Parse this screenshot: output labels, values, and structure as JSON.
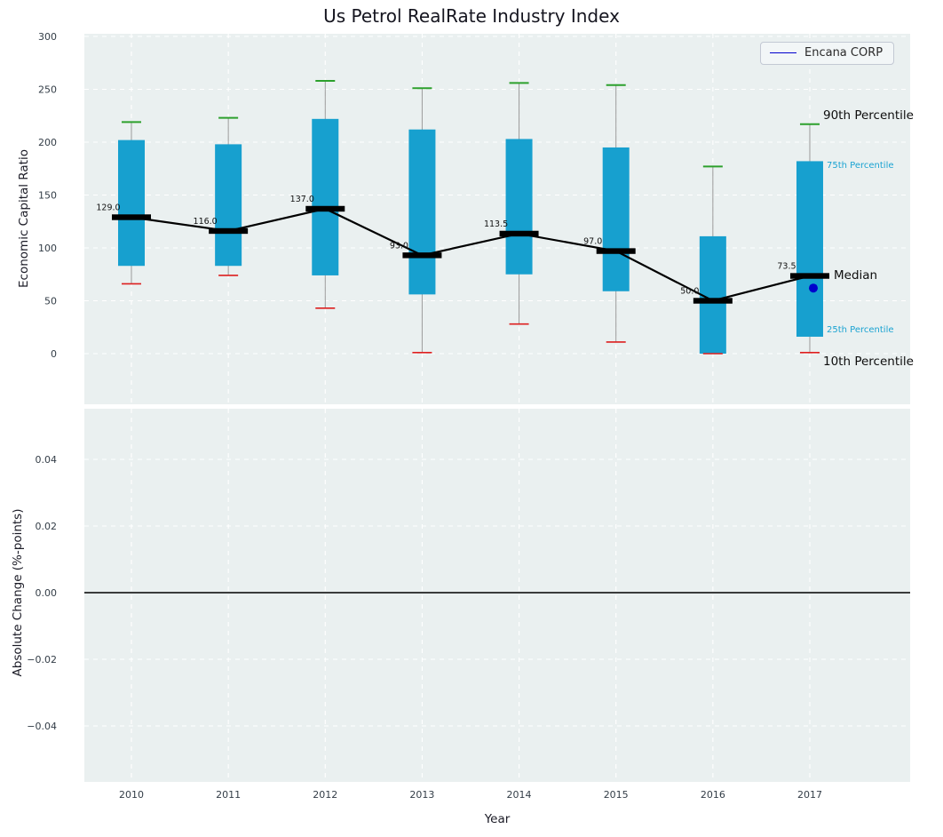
{
  "title": "Us Petrol RealRate Industry Index",
  "legend": {
    "label": "Encana CORP"
  },
  "axes": {
    "xlabel": "Year",
    "top": {
      "ylabel": "Economic Capital Ratio",
      "ytick_values": [
        0,
        50,
        100,
        150,
        200,
        250,
        300
      ],
      "yticklabels": [
        "0",
        "50",
        "100",
        "150",
        "200",
        "250",
        "300"
      ]
    },
    "bottom": {
      "ylabel": "Absolute Change (%-points)",
      "ytick_values": [
        -0.04,
        -0.02,
        0,
        0.02,
        0.04
      ],
      "yticklabels": [
        "−0.04",
        "−0.02",
        "0.00",
        "0.02",
        "0.04"
      ]
    }
  },
  "annotations": {
    "p90": "90th Percentile",
    "p75": "75th Percentile",
    "median": "Median",
    "p25": "25th Percentile",
    "p10": "10th Percentile"
  },
  "colors": {
    "axes_bg": "#eaf0f0",
    "grid": "#ffffff",
    "bar": "#17a0cf",
    "p90_cap": "#2ca02c",
    "p10_cap": "#dd1e1e",
    "whisker": "#9a9a9a",
    "median": "#000000",
    "company": "#0000cd",
    "tick": "#333d47"
  },
  "chart_data": {
    "type": "boxplot-percentile-series",
    "title": "Us Petrol RealRate Industry Index",
    "xlabel": "Year",
    "ylabel_top": "Economic Capital Ratio",
    "ylabel_bottom": "Absolute Change (%-points)",
    "categories": [
      2010,
      2011,
      2012,
      2013,
      2014,
      2015,
      2016,
      2017
    ],
    "series": [
      {
        "name": "p90",
        "values": [
          219,
          223,
          258,
          251,
          256,
          254,
          177,
          217
        ]
      },
      {
        "name": "p75",
        "values": [
          202,
          198,
          222,
          212,
          203,
          195,
          111,
          182
        ]
      },
      {
        "name": "median",
        "values": [
          129,
          116,
          137,
          93,
          113.5,
          97,
          50,
          73.5
        ]
      },
      {
        "name": "p25",
        "values": [
          83,
          83,
          74,
          56,
          75,
          59,
          0,
          16
        ]
      },
      {
        "name": "p10",
        "values": [
          66,
          74,
          43,
          1,
          28,
          11,
          0,
          1
        ]
      }
    ],
    "median_labels": [
      "129.0",
      "116.0",
      "137.0",
      "93.0",
      "113.5",
      "97.0",
      "50.0",
      "73.5"
    ],
    "company_point": {
      "name": "Encana CORP",
      "year": 2017,
      "value": 62
    },
    "top_ylim": [
      -48,
      302
    ],
    "bottom_ylim": [
      -0.057,
      0.055
    ],
    "bottom_zero_line": 0.0,
    "grid": "white-dashed",
    "legend_position": "upper right"
  }
}
